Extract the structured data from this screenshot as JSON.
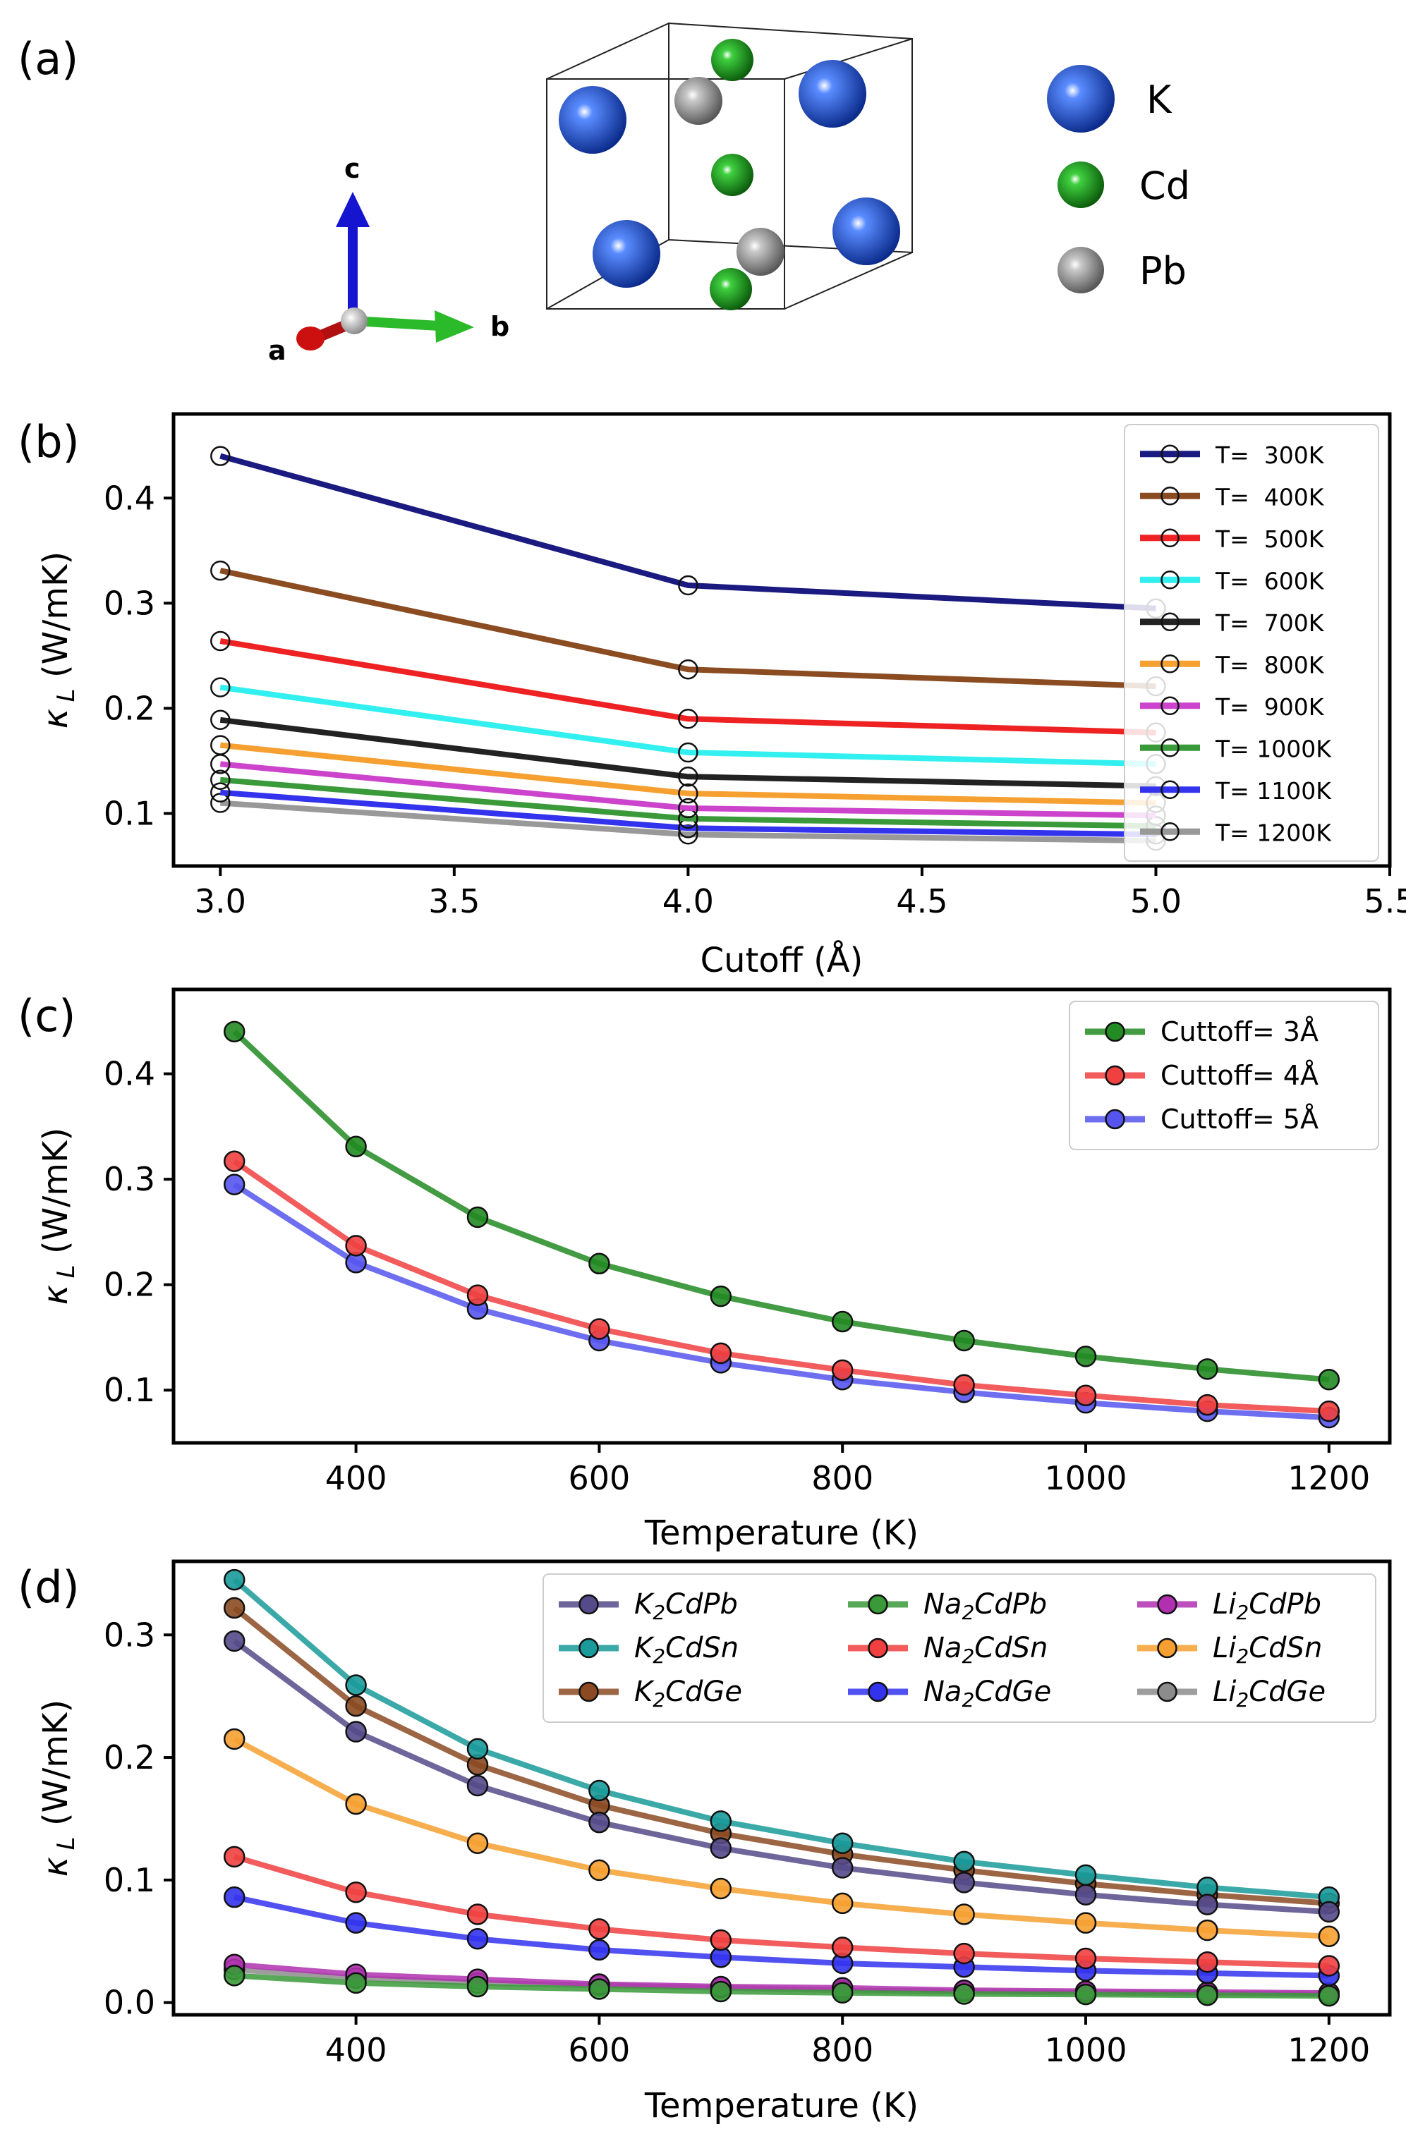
{
  "panels": {
    "a": {
      "label": "(a)",
      "atoms": [
        {
          "symbol": "K",
          "color": "#1f4fd0"
        },
        {
          "symbol": "Cd",
          "color": "#1fa01f"
        },
        {
          "symbol": "Pb",
          "color": "#9a9a9a"
        }
      ],
      "axes": {
        "a": "a",
        "b": "b",
        "c": "c"
      }
    },
    "b": {
      "label": "(b)"
    },
    "c": {
      "label": "(c)"
    },
    "d": {
      "label": "(d)"
    }
  },
  "chart_data": [
    {
      "id": "b",
      "type": "line",
      "title": "",
      "xlabel": "Cutoff (Å)",
      "ylabel": "κL (W/mK)",
      "xlim": [
        2.9,
        5.5
      ],
      "ylim": [
        0.05,
        0.48
      ],
      "xticks": [
        3.0,
        3.5,
        4.0,
        4.5,
        5.0,
        5.5
      ],
      "xtick_labels": [
        "3.0",
        "3.5",
        "4.0",
        "4.5",
        "5.0",
        "5.5"
      ],
      "yticks": [
        0.1,
        0.2,
        0.3,
        0.4
      ],
      "ytick_labels": [
        "0.1",
        "0.2",
        "0.3",
        "0.4"
      ],
      "x": [
        3.0,
        4.0,
        5.0
      ],
      "legend_position": "top-right",
      "marker": "open-circle",
      "series": [
        {
          "name": "T=  300K",
          "color": "#1a1a80",
          "values": [
            0.44,
            0.317,
            0.295
          ]
        },
        {
          "name": "T=  400K",
          "color": "#8b4c22",
          "values": [
            0.331,
            0.237,
            0.221
          ]
        },
        {
          "name": "T=  500K",
          "color": "#ee2222",
          "values": [
            0.264,
            0.19,
            0.177
          ]
        },
        {
          "name": "T=  600K",
          "color": "#33f0f0",
          "values": [
            0.22,
            0.158,
            0.147
          ]
        },
        {
          "name": "T=  700K",
          "color": "#222222",
          "values": [
            0.189,
            0.135,
            0.126
          ]
        },
        {
          "name": "T=  800K",
          "color": "#f5a030",
          "values": [
            0.165,
            0.119,
            0.11
          ]
        },
        {
          "name": "T=  900K",
          "color": "#cc44cc",
          "values": [
            0.147,
            0.105,
            0.098
          ]
        },
        {
          "name": "T= 1000K",
          "color": "#3a9a3a",
          "values": [
            0.132,
            0.095,
            0.088
          ]
        },
        {
          "name": "T= 1100K",
          "color": "#3333ee",
          "values": [
            0.12,
            0.086,
            0.08
          ]
        },
        {
          "name": "T= 1200K",
          "color": "#999999",
          "values": [
            0.11,
            0.08,
            0.074
          ]
        }
      ]
    },
    {
      "id": "c",
      "type": "line",
      "title": "",
      "xlabel": "Temperature (K)",
      "ylabel": "κL (W/mK)",
      "xlim": [
        250,
        1250
      ],
      "ylim": [
        0.05,
        0.48
      ],
      "xticks": [
        400,
        600,
        800,
        1000,
        1200
      ],
      "xtick_labels": [
        "400",
        "600",
        "800",
        "1000",
        "1200"
      ],
      "yticks": [
        0.1,
        0.2,
        0.3,
        0.4
      ],
      "ytick_labels": [
        "0.1",
        "0.2",
        "0.3",
        "0.4"
      ],
      "x": [
        300,
        400,
        500,
        600,
        700,
        800,
        900,
        1000,
        1100,
        1200
      ],
      "legend_position": "top-right",
      "marker": "filled-circle",
      "series": [
        {
          "name": "Cuttoff= 3Å",
          "color": "#228b22",
          "values": [
            0.44,
            0.331,
            0.264,
            0.22,
            0.189,
            0.165,
            0.147,
            0.132,
            0.12,
            0.11
          ]
        },
        {
          "name": "Cuttoff= 4Å",
          "color": "#f04040",
          "values": [
            0.317,
            0.237,
            0.19,
            0.158,
            0.135,
            0.119,
            0.105,
            0.095,
            0.086,
            0.08
          ]
        },
        {
          "name": "Cuttoff= 5Å",
          "color": "#5555ee",
          "values": [
            0.295,
            0.221,
            0.177,
            0.147,
            0.126,
            0.11,
            0.098,
            0.088,
            0.08,
            0.074
          ]
        }
      ]
    },
    {
      "id": "d",
      "type": "line",
      "title": "",
      "xlabel": "Temperature (K)",
      "ylabel": "κL (W/mK)",
      "xlim": [
        250,
        1250
      ],
      "ylim": [
        -0.01,
        0.36
      ],
      "xticks": [
        400,
        600,
        800,
        1000,
        1200
      ],
      "xtick_labels": [
        "400",
        "600",
        "800",
        "1000",
        "1200"
      ],
      "yticks": [
        0.0,
        0.1,
        0.2,
        0.3
      ],
      "ytick_labels": [
        "0.0",
        "0.1",
        "0.2",
        "0.3"
      ],
      "x": [
        300,
        400,
        500,
        600,
        700,
        800,
        900,
        1000,
        1100,
        1200
      ],
      "legend_position": "top-right",
      "marker": "filled-circle",
      "series": [
        {
          "name": "K2CdPb",
          "prefix": "K",
          "sub": "2",
          "suffix": "CdPb",
          "color": "#554a8a",
          "values": [
            0.295,
            0.221,
            0.177,
            0.147,
            0.126,
            0.11,
            0.098,
            0.088,
            0.08,
            0.074
          ]
        },
        {
          "name": "K2CdSn",
          "prefix": "K",
          "sub": "2",
          "suffix": "CdSn",
          "color": "#1a9a9a",
          "values": [
            0.345,
            0.259,
            0.207,
            0.173,
            0.148,
            0.13,
            0.115,
            0.104,
            0.094,
            0.086
          ]
        },
        {
          "name": "K2CdGe",
          "prefix": "K",
          "sub": "2",
          "suffix": "CdGe",
          "color": "#8b4a22",
          "values": [
            0.322,
            0.242,
            0.194,
            0.161,
            0.138,
            0.121,
            0.108,
            0.097,
            0.088,
            0.081
          ]
        },
        {
          "name": "Na2CdPb",
          "prefix": "Na",
          "sub": "2",
          "suffix": "CdPb",
          "color": "#3a9a3a",
          "values": [
            0.022,
            0.016,
            0.013,
            0.011,
            0.009,
            0.008,
            0.007,
            0.0066,
            0.006,
            0.0055
          ]
        },
        {
          "name": "Na2CdSn",
          "prefix": "Na",
          "sub": "2",
          "suffix": "CdSn",
          "color": "#f04040",
          "values": [
            0.119,
            0.09,
            0.072,
            0.06,
            0.051,
            0.045,
            0.04,
            0.036,
            0.033,
            0.03
          ]
        },
        {
          "name": "Na2CdGe",
          "prefix": "Na",
          "sub": "2",
          "suffix": "CdGe",
          "color": "#3333ee",
          "values": [
            0.086,
            0.065,
            0.052,
            0.043,
            0.037,
            0.032,
            0.029,
            0.026,
            0.024,
            0.022
          ]
        },
        {
          "name": "Li2CdPb",
          "prefix": "Li",
          "sub": "2",
          "suffix": "CdPb",
          "color": "#b030b0",
          "values": [
            0.031,
            0.023,
            0.019,
            0.015,
            0.013,
            0.012,
            0.01,
            0.0093,
            0.0085,
            0.0078
          ]
        },
        {
          "name": "Li2CdSn",
          "prefix": "Li",
          "sub": "2",
          "suffix": "CdSn",
          "color": "#f5a030",
          "values": [
            0.215,
            0.162,
            0.13,
            0.108,
            0.093,
            0.081,
            0.072,
            0.065,
            0.059,
            0.054
          ]
        },
        {
          "name": "Li2CdGe",
          "prefix": "Li",
          "sub": "2",
          "suffix": "CdGe",
          "color": "#8c8c8c",
          "values": [
            0.027,
            0.02,
            0.016,
            0.014,
            0.012,
            0.01,
            0.009,
            0.008,
            0.0074,
            0.0068
          ]
        }
      ]
    }
  ]
}
